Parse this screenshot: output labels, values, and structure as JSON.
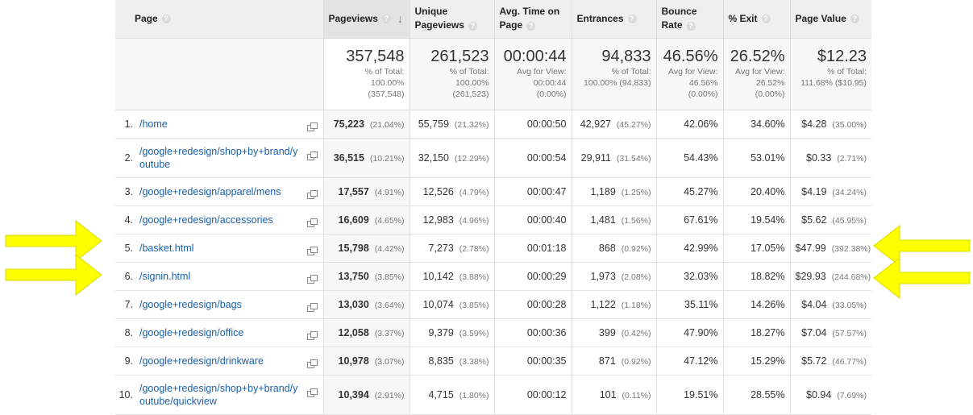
{
  "columns": {
    "page": "Page",
    "pageviews": "Pageviews",
    "unique_pageviews": "Unique Pageviews",
    "avg_time": "Avg. Time on Page",
    "entrances": "Entrances",
    "bounce_rate": "Bounce Rate",
    "exit": "% Exit",
    "page_value": "Page Value"
  },
  "totals": {
    "pageviews": {
      "value": "357,548",
      "line1": "% of Total:",
      "line2": "100.00%",
      "line3": "(357,548)"
    },
    "unique_pageviews": {
      "value": "261,523",
      "line1": "% of Total:",
      "line2": "100.00%",
      "line3": "(261,523)"
    },
    "avg_time": {
      "value": "00:00:44",
      "line1": "Avg for View:",
      "line2": "00:00:44",
      "line3": "(0.00%)"
    },
    "entrances": {
      "value": "94,833",
      "line1": "% of Total:",
      "line2": "100.00% (94,833)",
      "line3": ""
    },
    "bounce_rate": {
      "value": "46.56%",
      "line1": "Avg for View:",
      "line2": "46.56%",
      "line3": "(0.00%)"
    },
    "exit": {
      "value": "26.52%",
      "line1": "Avg for View:",
      "line2": "26.52%",
      "line3": "(0.00%)"
    },
    "page_value": {
      "value": "$12.23",
      "line1": "% of Total:",
      "line2": "111.68% ($10.95)",
      "line3": ""
    }
  },
  "rows": [
    {
      "num": "1.",
      "page": "/home",
      "pv": "75,223",
      "pv_pct": "(21.04%)",
      "upv": "55,759",
      "upv_pct": "(21.32%)",
      "avg": "00:00:50",
      "ent": "42,927",
      "ent_pct": "(45.27%)",
      "br": "42.06%",
      "exit": "34.60%",
      "val": "$4.28",
      "val_pct": "(35.00%)"
    },
    {
      "num": "2.",
      "page": "/google+redesign/shop+by+brand/youtube",
      "pv": "36,515",
      "pv_pct": "(10.21%)",
      "upv": "32,150",
      "upv_pct": "(12.29%)",
      "avg": "00:00:54",
      "ent": "29,911",
      "ent_pct": "(31.54%)",
      "br": "54.43%",
      "exit": "53.01%",
      "val": "$0.33",
      "val_pct": "(2.71%)"
    },
    {
      "num": "3.",
      "page": "/google+redesign/apparel/mens",
      "pv": "17,557",
      "pv_pct": "(4.91%)",
      "upv": "12,526",
      "upv_pct": "(4.79%)",
      "avg": "00:00:47",
      "ent": "1,189",
      "ent_pct": "(1.25%)",
      "br": "45.27%",
      "exit": "20.40%",
      "val": "$4.19",
      "val_pct": "(34.24%)"
    },
    {
      "num": "4.",
      "page": "/google+redesign/accessories",
      "pv": "16,609",
      "pv_pct": "(4.65%)",
      "upv": "12,983",
      "upv_pct": "(4.96%)",
      "avg": "00:00:40",
      "ent": "1,481",
      "ent_pct": "(1.56%)",
      "br": "67.61%",
      "exit": "19.54%",
      "val": "$5.62",
      "val_pct": "(45.95%)"
    },
    {
      "num": "5.",
      "page": "/basket.html",
      "pv": "15,798",
      "pv_pct": "(4.42%)",
      "upv": "7,273",
      "upv_pct": "(2.78%)",
      "avg": "00:01:18",
      "ent": "868",
      "ent_pct": "(0.92%)",
      "br": "42.99%",
      "exit": "17.05%",
      "val": "$47.99",
      "val_pct": "(392.38%)"
    },
    {
      "num": "6.",
      "page": "/signin.html",
      "pv": "13,750",
      "pv_pct": "(3.85%)",
      "upv": "10,142",
      "upv_pct": "(3.88%)",
      "avg": "00:00:29",
      "ent": "1,973",
      "ent_pct": "(2.08%)",
      "br": "32.03%",
      "exit": "18.82%",
      "val": "$29.93",
      "val_pct": "(244.68%)"
    },
    {
      "num": "7.",
      "page": "/google+redesign/bags",
      "pv": "13,030",
      "pv_pct": "(3.64%)",
      "upv": "10,074",
      "upv_pct": "(3.85%)",
      "avg": "00:00:28",
      "ent": "1,122",
      "ent_pct": "(1.18%)",
      "br": "35.11%",
      "exit": "14.26%",
      "val": "$4.04",
      "val_pct": "(33.05%)"
    },
    {
      "num": "8.",
      "page": "/google+redesign/office",
      "pv": "12,058",
      "pv_pct": "(3.37%)",
      "upv": "9,379",
      "upv_pct": "(3.59%)",
      "avg": "00:00:36",
      "ent": "399",
      "ent_pct": "(0.42%)",
      "br": "47.90%",
      "exit": "18.27%",
      "val": "$7.04",
      "val_pct": "(57.57%)"
    },
    {
      "num": "9.",
      "page": "/google+redesign/drinkware",
      "pv": "10,978",
      "pv_pct": "(3.07%)",
      "upv": "8,835",
      "upv_pct": "(3.38%)",
      "avg": "00:00:35",
      "ent": "871",
      "ent_pct": "(0.92%)",
      "br": "47.12%",
      "exit": "15.29%",
      "val": "$5.72",
      "val_pct": "(46.77%)"
    },
    {
      "num": "10.",
      "page": "/google+redesign/shop+by+brand/youtube/quickview",
      "pv": "10,394",
      "pv_pct": "(2.91%)",
      "upv": "4,715",
      "upv_pct": "(1.80%)",
      "avg": "00:00:12",
      "ent": "101",
      "ent_pct": "(0.11%)",
      "br": "19.51%",
      "exit": "28.55%",
      "val": "$0.94",
      "val_pct": "(7.69%)"
    }
  ],
  "colors": {
    "arrow": "#ffff00",
    "link": "#1a5fa8",
    "header_bg": "#efefef"
  }
}
